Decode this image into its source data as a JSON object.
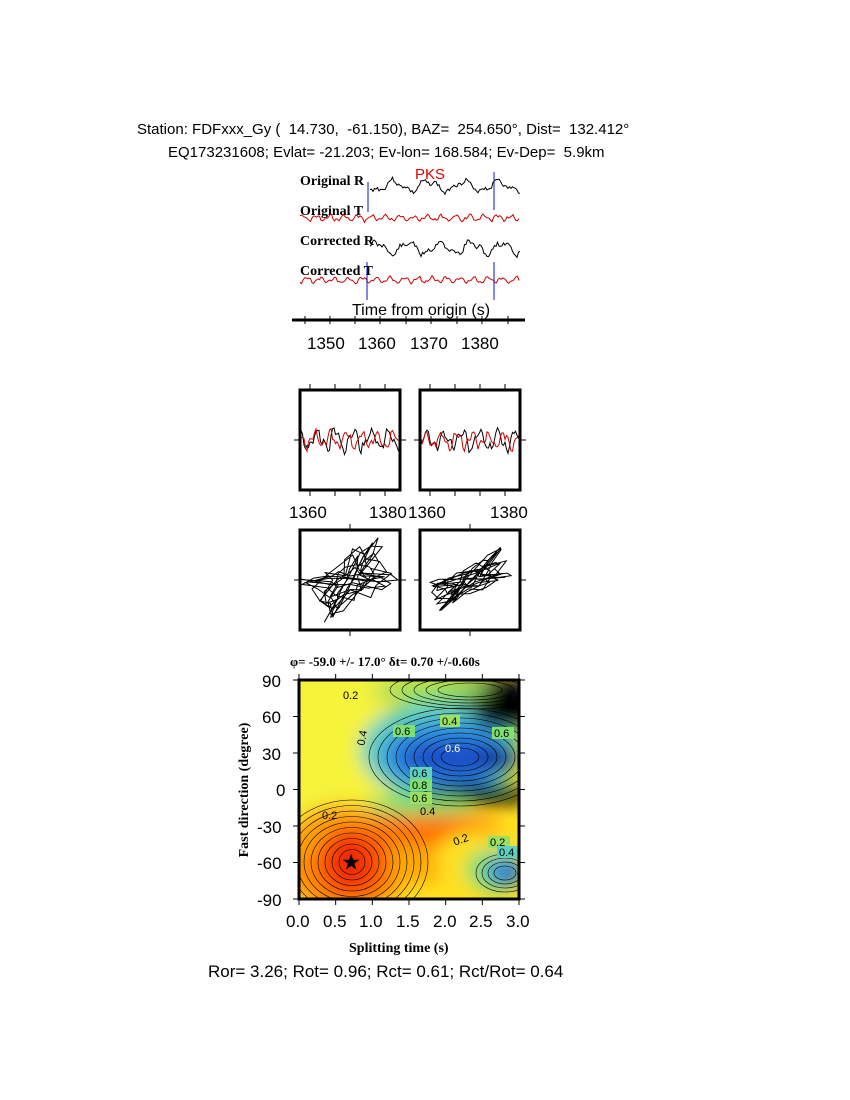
{
  "header": {
    "line1": "Station: FDFxxx_Gy (  14.730,  -61.150), BAZ=  254.650°, Dist=  132.412°",
    "line2": "EQ173231608; Evlat= -21.203; Ev-lon= 168.584; Ev-Dep=  5.9km"
  },
  "traces": {
    "labels": [
      "Original R",
      "Original T",
      "Corrected R",
      "Corrected T"
    ],
    "phase": "PKS",
    "colors": {
      "radial": "#000000",
      "transverse": "#d10000",
      "window": "#1010c0"
    },
    "xlabel": "Time from origin (s)",
    "ticks": [
      "1350",
      "1360",
      "1370",
      "1380"
    ]
  },
  "waveforms": {
    "left_ticks": [
      "1360",
      "1380"
    ],
    "right_ticks": [
      "1360",
      "1380"
    ]
  },
  "chart_data": {
    "type": "heatmap",
    "title": "φ= -59.0 +/- 17.0° δt= 0.70 +/-0.60s",
    "xlabel": "Splitting time (s)",
    "ylabel": "Fast direction (degree)",
    "xlim": [
      0.0,
      3.0
    ],
    "ylim": [
      -90,
      90
    ],
    "x_ticks": [
      "0.0",
      "0.5",
      "1.0",
      "1.5",
      "2.0",
      "2.5",
      "3.0"
    ],
    "y_ticks": [
      "90",
      "60",
      "30",
      "0",
      "-30",
      "-60",
      "-90"
    ],
    "contour_labels": [
      "0.2",
      "0.4",
      "0.6",
      "0.4",
      "0.6",
      "0.6",
      "0.6",
      "0.8",
      "0.6",
      "0.4",
      "0.2",
      "0.2",
      "0.2",
      "0.4",
      "0.6"
    ],
    "best_fit": {
      "x": 0.7,
      "y": -59.0
    },
    "colormap": [
      "#000000",
      "#1a4fc8",
      "#2a8ee0",
      "#5fd0c0",
      "#7fe070",
      "#e6f040",
      "#ffe020",
      "#ffa000",
      "#ff5a00",
      "#f02800"
    ]
  },
  "footer": "Ror= 3.26; Rot= 0.96; Rct= 0.61; Rct/Rot= 0.64"
}
